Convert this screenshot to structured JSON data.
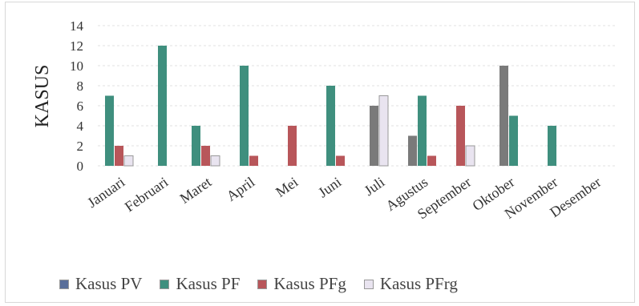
{
  "chart_data": {
    "type": "bar",
    "categories": [
      "Januari",
      "Februari",
      "Maret",
      "April",
      "Mei",
      "Juni",
      "Juli",
      "Agustus",
      "September",
      "Oktober",
      "November",
      "Desember"
    ],
    "series": [
      {
        "name": "Kasus PV",
        "color": "#7a7a7a",
        "values": [
          0,
          0,
          0,
          0,
          0,
          0,
          6,
          3,
          0,
          10,
          0,
          0
        ]
      },
      {
        "name": "Kasus PF",
        "color": "#3f8f7e",
        "values": [
          7,
          12,
          4,
          10,
          0,
          8,
          0,
          7,
          0,
          5,
          4,
          0
        ]
      },
      {
        "name": "Kasus PFg",
        "color": "#b8565a",
        "values": [
          2,
          0,
          2,
          1,
          4,
          1,
          0,
          1,
          6,
          0,
          0,
          0
        ]
      },
      {
        "name": "Kasus PFrg",
        "color": "#e9e4f0",
        "values": [
          1,
          0,
          1,
          0,
          0,
          0,
          7,
          0,
          2,
          0,
          0,
          0
        ]
      }
    ],
    "ylabel": "KASUS",
    "ylim": [
      0,
      14
    ],
    "yticks": [
      "0",
      "2",
      "4",
      "6",
      "8",
      "10",
      "12",
      "14"
    ],
    "grid": true,
    "legend_position": "bottom"
  }
}
